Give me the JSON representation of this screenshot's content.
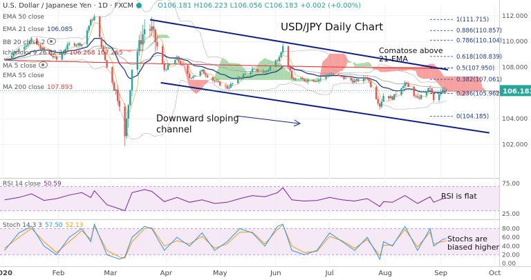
{
  "header": {
    "symbol": "U.S. Dollar / Japanese Yen · 1D · FXCM",
    "ohlc": "O106.181 H106.223 L106.056 C106.183 +0.002 (+0.00%)"
  },
  "indicators": {
    "ema50": {
      "label": "EMA 50 close",
      "value": ""
    },
    "ema21": {
      "label": "EMA 21 close",
      "value": "106.085"
    },
    "bb": {
      "label": "BB 20 close 2",
      "value": ""
    },
    "ichimoku": {
      "label": "Ichimoku 9 26 52 26",
      "value": "106.268  107.265"
    },
    "ma5": {
      "label": "MA 5 close",
      "value": ""
    },
    "ema55": {
      "label": "EMA 55 close",
      "value": ""
    },
    "ma200": {
      "label": "MA 200 close",
      "value": "107.893"
    },
    "rsi": {
      "label": "RSI 14 close",
      "value": "50.59"
    },
    "stoch": {
      "label": "Stoch 14 3 3",
      "k": "57.50",
      "d": "52.13"
    }
  },
  "annotations": {
    "title": "USD/JPY Daily Chart",
    "channel": [
      "Downward sloping",
      "channel"
    ],
    "comatose": [
      "Comatose above",
      "21-EMA"
    ],
    "rsi": "RSI is flat",
    "stoch": [
      "Stochs are",
      "biased higher"
    ]
  },
  "colors": {
    "up": "#26a69a",
    "down": "#ef5350",
    "ema21": "#1e3a8a",
    "ma200": "#e53935",
    "channel": "#0d1f8a",
    "cloud_bull": "#66bb6a",
    "cloud_bear": "#ef5350",
    "rsi": "#7b1fa2",
    "stoch_k": "#2196f3",
    "stoch_d": "#ff9800",
    "fib": "#1e3a8a",
    "price_tag": "#26a69a"
  },
  "chart_data": {
    "type": "candlestick",
    "title": "USD/JPY Daily Chart",
    "price_axis": {
      "ticks": [
        102,
        104,
        106,
        108,
        110,
        112
      ],
      "ylim": [
        99.5,
        112.8
      ]
    },
    "time_axis": {
      "labels": [
        "2020",
        "Feb",
        "Mar",
        "Apr",
        "May",
        "Jun",
        "Jul",
        "Aug",
        "Sep",
        "Oct"
      ],
      "range": [
        "2020-01-01",
        "2020-10-05"
      ]
    },
    "last_price": "106.183",
    "fibonacci": [
      {
        "label": "1(111.715)",
        "value": 111.715
      },
      {
        "label": "0.886(110.857)",
        "value": 110.857
      },
      {
        "label": "0.786(110.104)",
        "value": 110.104
      },
      {
        "label": "0.618(108.839)",
        "value": 108.839
      },
      {
        "label": "0.5(107.950)",
        "value": 107.95
      },
      {
        "label": "0.382(107.061)",
        "value": 107.061
      },
      {
        "label": "0.236(105.962)",
        "value": 105.962
      },
      {
        "label": "0(104.185)",
        "value": 104.185
      }
    ],
    "channel_lines": [
      {
        "name": "upper",
        "points": [
          [
            "2020-03-23",
            111.7
          ],
          [
            "2020-09-05",
            107.8
          ]
        ]
      },
      {
        "name": "lower",
        "points": [
          [
            "2020-03-29",
            106.8
          ],
          [
            "2020-09-28",
            102.9
          ]
        ]
      }
    ],
    "close_series": {
      "dates": [
        "2020-01-02",
        "2020-01-10",
        "2020-01-17",
        "2020-01-24",
        "2020-01-31",
        "2020-02-07",
        "2020-02-14",
        "2020-02-19",
        "2020-02-21",
        "2020-02-28",
        "2020-03-06",
        "2020-03-09",
        "2020-03-13",
        "2020-03-20",
        "2020-03-24",
        "2020-03-31",
        "2020-04-07",
        "2020-04-14",
        "2020-04-21",
        "2020-04-28",
        "2020-05-05",
        "2020-05-12",
        "2020-05-19",
        "2020-05-26",
        "2020-06-02",
        "2020-06-05",
        "2020-06-10",
        "2020-06-17",
        "2020-06-24",
        "2020-07-01",
        "2020-07-08",
        "2020-07-15",
        "2020-07-22",
        "2020-07-29",
        "2020-07-31",
        "2020-08-05",
        "2020-08-12",
        "2020-08-19",
        "2020-08-26",
        "2020-08-28",
        "2020-09-02",
        "2020-09-04"
      ],
      "close": [
        108.6,
        109.4,
        110.1,
        109.3,
        108.6,
        109.8,
        109.8,
        111.6,
        111.9,
        108.0,
        105.4,
        102.4,
        108.0,
        111.0,
        110.9,
        107.8,
        108.7,
        107.2,
        107.7,
        106.9,
        106.4,
        107.2,
        107.8,
        107.6,
        108.6,
        109.6,
        107.1,
        107.0,
        107.0,
        107.5,
        107.2,
        106.9,
        107.2,
        105.0,
        105.8,
        105.6,
        106.8,
        105.5,
        106.4,
        105.4,
        106.2,
        106.18
      ]
    },
    "ma200_level": 107.893,
    "ema21_last": 106.085,
    "rsi": {
      "ticks": [
        25,
        75
      ],
      "band": [
        30,
        70
      ],
      "last": 50.59,
      "series": [
        48,
        52,
        58,
        47,
        50,
        56,
        60,
        52,
        63,
        40,
        33,
        30,
        60,
        65,
        62,
        45,
        52,
        44,
        48,
        42,
        44,
        50,
        55,
        53,
        60,
        68,
        48,
        46,
        47,
        52,
        48,
        46,
        50,
        37,
        45,
        44,
        55,
        42,
        53,
        44,
        50,
        50.6
      ]
    },
    "stoch": {
      "ticks": [
        0,
        20,
        40,
        60,
        80
      ],
      "band": [
        20,
        80
      ],
      "k_last": 57.5,
      "d_last": 52.13,
      "k": [
        30,
        70,
        85,
        40,
        20,
        60,
        80,
        50,
        90,
        20,
        10,
        15,
        60,
        85,
        80,
        30,
        60,
        40,
        70,
        30,
        50,
        80,
        70,
        40,
        85,
        90,
        30,
        20,
        30,
        70,
        50,
        30,
        60,
        10,
        50,
        40,
        85,
        30,
        80,
        40,
        55,
        57.5
      ],
      "d": [
        35,
        60,
        80,
        50,
        25,
        50,
        75,
        55,
        85,
        30,
        15,
        12,
        50,
        80,
        82,
        40,
        52,
        45,
        62,
        35,
        45,
        72,
        72,
        45,
        78,
        88,
        40,
        25,
        28,
        62,
        52,
        35,
        55,
        18,
        42,
        42,
        78,
        38,
        72,
        45,
        50,
        52.13
      ]
    }
  }
}
